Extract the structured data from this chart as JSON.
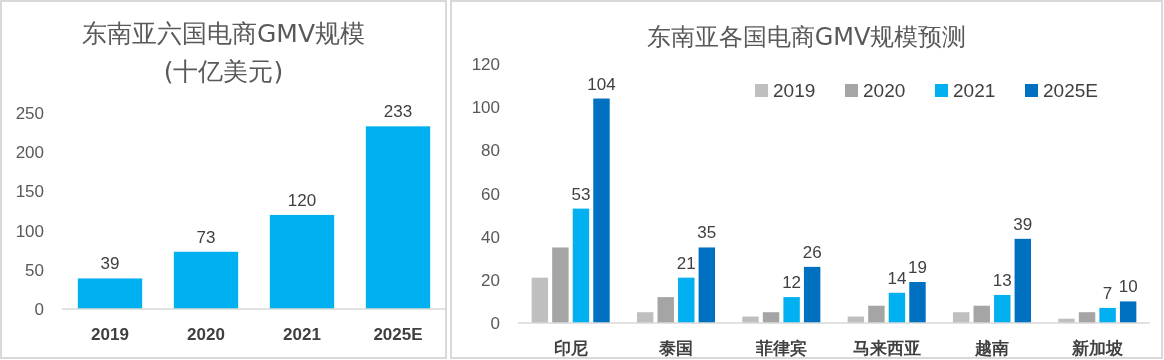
{
  "chart_data": [
    {
      "type": "bar",
      "title": "东南亚六国电商GMV规模",
      "subtitle": "(十亿美元)",
      "categories": [
        "2019",
        "2020",
        "2021",
        "2025E"
      ],
      "values": [
        39,
        73,
        120,
        233
      ],
      "color": "#00b0f0",
      "ylim": [
        0,
        250
      ],
      "yticks": [
        0,
        50,
        100,
        150,
        200,
        250
      ],
      "data_labels": true
    },
    {
      "type": "bar",
      "title": "东南亚各国电商GMV规模预测",
      "categories": [
        "印尼",
        "泰国",
        "菲律宾",
        "马来西亚",
        "越南",
        "新加坡"
      ],
      "ylim": [
        0,
        120
      ],
      "yticks": [
        0,
        20,
        40,
        60,
        80,
        100,
        120
      ],
      "legend": "top right",
      "series": [
        {
          "name": "2019",
          "color": "#bfbfbf",
          "values": [
            21,
            5,
            3,
            3,
            5,
            2
          ]
        },
        {
          "name": "2020",
          "color": "#a5a5a5",
          "values": [
            35,
            12,
            5,
            8,
            8,
            5
          ]
        },
        {
          "name": "2021",
          "color": "#00b0f0",
          "values": [
            53,
            21,
            12,
            14,
            13,
            7
          ],
          "value_labels": [
            "53",
            "21",
            "12",
            "14",
            "13",
            "7"
          ]
        },
        {
          "name": "2025E",
          "color": "#0070c0",
          "values": [
            104,
            35,
            26,
            19,
            39,
            10
          ],
          "value_labels": [
            "104",
            "35",
            "26",
            "19",
            "39",
            "10"
          ]
        }
      ]
    }
  ]
}
